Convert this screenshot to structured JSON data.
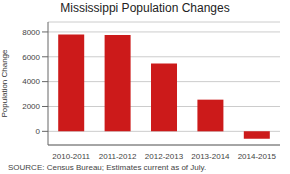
{
  "chart_data": {
    "type": "bar",
    "title": "Mississippi Population Changes",
    "ylabel": "Population Change",
    "source": "SOURCE: Census Bureau; Estimates current as of July.",
    "categories": [
      "2010-2011",
      "2011-2012",
      "2012-2013",
      "2013-2014",
      "2014-2015"
    ],
    "values": [
      7800,
      7750,
      5450,
      2550,
      -600
    ],
    "color": "#cc1a1a",
    "ylim": [
      -1100,
      8800
    ],
    "yticks": [
      0,
      2000,
      4000,
      6000,
      8000
    ],
    "grid": true
  }
}
